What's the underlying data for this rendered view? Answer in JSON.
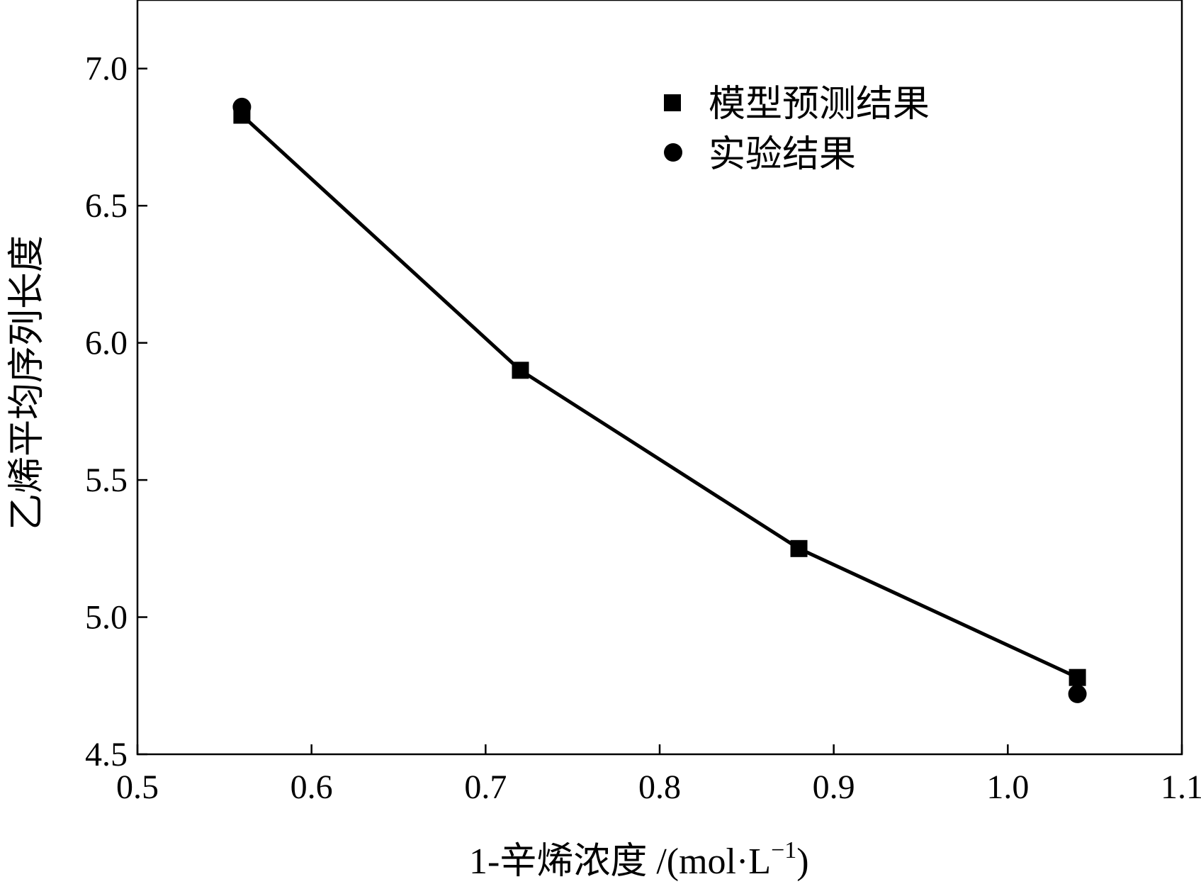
{
  "chart_data": {
    "type": "line",
    "xlabel": "1-辛烯浓度 /(mol·L",
    "xlabel_sup": "−1",
    "xlabel_close": ")",
    "ylabel": "乙烯平均序列长度",
    "xlim": [
      0.5,
      1.1
    ],
    "ylim": [
      4.5,
      7.25
    ],
    "xticks": [
      0.5,
      0.6,
      0.7,
      0.8,
      0.9,
      1.0,
      1.1
    ],
    "xtick_labels": [
      "0.5",
      "0.6",
      "0.7",
      "0.8",
      "0.9",
      "1.0",
      "1.1"
    ],
    "yticks": [
      4.5,
      5.0,
      5.5,
      6.0,
      6.5,
      7.0
    ],
    "ytick_labels": [
      "4.5",
      "5.0",
      "5.5",
      "6.0",
      "6.5",
      "7.0"
    ],
    "grid": false,
    "legend_position": "top-right",
    "series": [
      {
        "name": "模型预测结果",
        "marker": "square",
        "line": true,
        "x": [
          0.56,
          0.72,
          0.88,
          1.04
        ],
        "y": [
          6.83,
          5.9,
          5.25,
          4.78
        ]
      },
      {
        "name": "实验结果",
        "marker": "circle",
        "line": false,
        "x": [
          0.56,
          1.04
        ],
        "y": [
          6.86,
          4.72
        ]
      }
    ],
    "colors": {
      "marker": "#000000",
      "line": "#000000"
    }
  }
}
